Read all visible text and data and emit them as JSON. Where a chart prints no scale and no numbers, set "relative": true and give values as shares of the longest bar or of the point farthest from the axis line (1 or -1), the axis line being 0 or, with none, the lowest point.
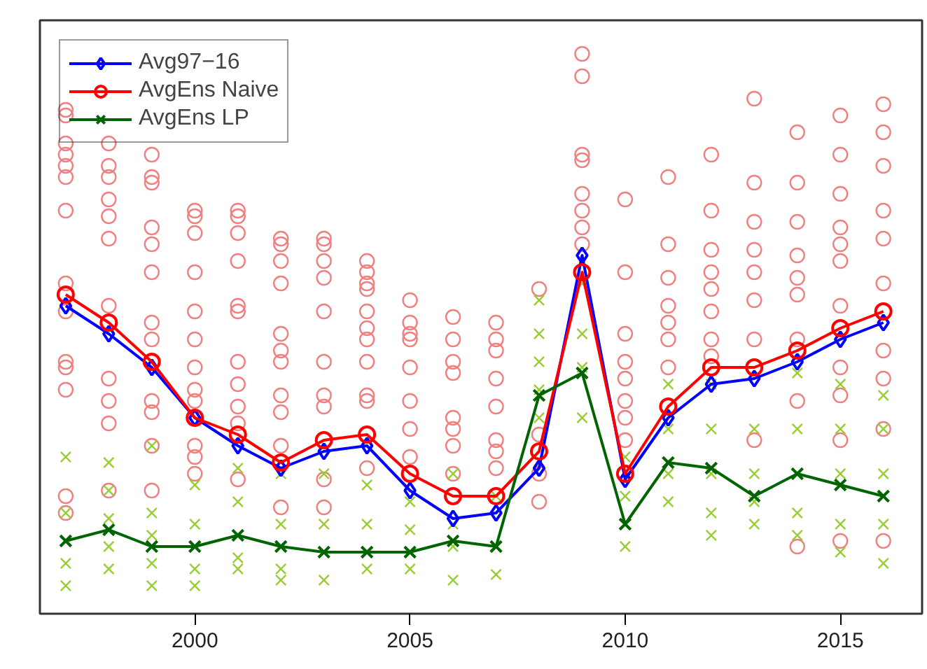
{
  "chart_data": {
    "type": "line",
    "relative": true,
    "x": [
      1997,
      1998,
      1999,
      2000,
      2001,
      2002,
      2003,
      2004,
      2005,
      2006,
      2007,
      2008,
      2009,
      2010,
      2011,
      2012,
      2013,
      2014,
      2015,
      2016
    ],
    "xlim": [
      1996.4,
      2016.9
    ],
    "xticks": [
      2000,
      2005,
      2010,
      2015
    ],
    "grid": false,
    "legend": "top left",
    "series": [
      {
        "type": "scatter",
        "marker": "circle",
        "color": "#f08080",
        "x": [
          1997,
          1997,
          1997,
          1997,
          1997,
          1997,
          1997,
          1997,
          1997,
          1997,
          1997,
          1997,
          1997,
          1997,
          1998,
          1998,
          1998,
          1998,
          1998,
          1998,
          1998,
          1998,
          1998,
          1998,
          1998,
          1999,
          1999,
          1999,
          1999,
          1999,
          1999,
          1999,
          1999,
          1999,
          1999,
          1999,
          1999,
          1999,
          2000,
          2000,
          2000,
          2000,
          2000,
          2000,
          2000,
          2000,
          2000,
          2000,
          2000,
          2000,
          2001,
          2001,
          2001,
          2001,
          2001,
          2001,
          2001,
          2001,
          2001,
          2001,
          2001,
          2002,
          2002,
          2002,
          2002,
          2002,
          2002,
          2002,
          2002,
          2002,
          2002,
          2002,
          2003,
          2003,
          2003,
          2003,
          2003,
          2003,
          2003,
          2003,
          2003,
          2003,
          2004,
          2004,
          2004,
          2004,
          2004,
          2004,
          2004,
          2004,
          2004,
          2004,
          2004,
          2005,
          2005,
          2005,
          2005,
          2005,
          2005,
          2005,
          2005,
          2006,
          2006,
          2006,
          2006,
          2006,
          2006,
          2006,
          2006,
          2007,
          2007,
          2007,
          2007,
          2007,
          2007,
          2007,
          2007,
          2008,
          2008,
          2008,
          2008,
          2009,
          2009,
          2009,
          2009,
          2009,
          2009,
          2009,
          2009,
          2010,
          2010,
          2010,
          2010,
          2010,
          2010,
          2010,
          2010,
          2011,
          2011,
          2011,
          2011,
          2011,
          2011,
          2011,
          2012,
          2012,
          2012,
          2012,
          2012,
          2012,
          2012,
          2012,
          2013,
          2013,
          2013,
          2013,
          2013,
          2013,
          2013,
          2013,
          2014,
          2014,
          2014,
          2014,
          2014,
          2014,
          2014,
          2014,
          2014,
          2015,
          2015,
          2015,
          2015,
          2015,
          2015,
          2015,
          2015,
          2015,
          2015,
          2015,
          2016,
          2016,
          2016,
          2016,
          2016,
          2016,
          2016,
          2016,
          2016,
          2016
        ],
        "values": [
          0.9,
          0.89,
          0.84,
          0.82,
          0.8,
          0.78,
          0.72,
          0.59,
          0.54,
          0.45,
          0.44,
          0.4,
          0.21,
          0.18,
          0.84,
          0.8,
          0.78,
          0.74,
          0.71,
          0.67,
          0.55,
          0.42,
          0.38,
          0.34,
          0.22,
          0.82,
          0.78,
          0.77,
          0.69,
          0.66,
          0.61,
          0.52,
          0.49,
          0.45,
          0.38,
          0.36,
          0.3,
          0.22,
          0.72,
          0.71,
          0.68,
          0.61,
          0.54,
          0.49,
          0.44,
          0.4,
          0.38,
          0.3,
          0.28,
          0.25,
          0.72,
          0.71,
          0.68,
          0.63,
          0.55,
          0.54,
          0.45,
          0.41,
          0.37,
          0.34,
          0.24,
          0.67,
          0.66,
          0.63,
          0.59,
          0.5,
          0.47,
          0.45,
          0.39,
          0.36,
          0.3,
          0.19,
          0.67,
          0.66,
          0.63,
          0.6,
          0.54,
          0.45,
          0.39,
          0.37,
          0.24,
          0.19,
          0.63,
          0.61,
          0.59,
          0.58,
          0.54,
          0.51,
          0.49,
          0.45,
          0.39,
          0.38,
          0.26,
          0.56,
          0.52,
          0.5,
          0.49,
          0.44,
          0.38,
          0.33,
          0.28,
          0.53,
          0.49,
          0.45,
          0.43,
          0.35,
          0.33,
          0.3,
          0.25,
          0.52,
          0.49,
          0.47,
          0.42,
          0.37,
          0.31,
          0.29,
          0.26,
          0.58,
          0.32,
          0.25,
          0.2,
          1.0,
          0.96,
          0.82,
          0.81,
          0.75,
          0.72,
          0.69,
          0.66,
          0.74,
          0.61,
          0.5,
          0.45,
          0.42,
          0.38,
          0.35,
          0.31,
          0.78,
          0.66,
          0.6,
          0.55,
          0.52,
          0.49,
          0.44,
          0.82,
          0.72,
          0.65,
          0.61,
          0.58,
          0.54,
          0.49,
          0.46,
          0.92,
          0.77,
          0.7,
          0.65,
          0.61,
          0.56,
          0.49,
          0.31,
          0.86,
          0.77,
          0.7,
          0.64,
          0.6,
          0.57,
          0.49,
          0.38,
          0.12,
          0.89,
          0.82,
          0.75,
          0.69,
          0.66,
          0.63,
          0.55,
          0.44,
          0.39,
          0.31,
          0.13,
          0.91,
          0.86,
          0.8,
          0.72,
          0.67,
          0.59,
          0.47,
          0.42,
          0.33,
          0.13
        ]
      },
      {
        "type": "scatter",
        "marker": "cross",
        "color": "#9acd32",
        "x": [
          1997,
          1997,
          1997,
          1997,
          1998,
          1998,
          1998,
          1998,
          1998,
          1999,
          1999,
          1999,
          1999,
          1999,
          2000,
          2000,
          2000,
          2000,
          2001,
          2001,
          2001,
          2001,
          2002,
          2002,
          2002,
          2002,
          2003,
          2003,
          2003,
          2004,
          2004,
          2004,
          2005,
          2005,
          2005,
          2006,
          2006,
          2006,
          2006,
          2007,
          2007,
          2008,
          2008,
          2008,
          2008,
          2008,
          2009,
          2009,
          2009,
          2009,
          2010,
          2010,
          2010,
          2011,
          2011,
          2011,
          2011,
          2012,
          2012,
          2012,
          2012,
          2012,
          2013,
          2013,
          2013,
          2013,
          2014,
          2014,
          2014,
          2014,
          2015,
          2015,
          2015,
          2015,
          2015,
          2016,
          2016,
          2016,
          2016,
          2016
        ],
        "values": [
          0.28,
          0.18,
          0.09,
          0.05,
          0.27,
          0.22,
          0.17,
          0.12,
          0.08,
          0.3,
          0.18,
          0.14,
          0.09,
          0.05,
          0.23,
          0.16,
          0.08,
          0.05,
          0.26,
          0.2,
          0.1,
          0.08,
          0.25,
          0.16,
          0.08,
          0.06,
          0.25,
          0.16,
          0.06,
          0.23,
          0.16,
          0.08,
          0.2,
          0.15,
          0.08,
          0.25,
          0.16,
          0.12,
          0.06,
          0.21,
          0.07,
          0.56,
          0.5,
          0.45,
          0.4,
          0.35,
          0.59,
          0.5,
          0.44,
          0.35,
          0.28,
          0.21,
          0.12,
          0.41,
          0.33,
          0.25,
          0.2,
          0.41,
          0.33,
          0.25,
          0.18,
          0.14,
          0.33,
          0.25,
          0.2,
          0.16,
          0.43,
          0.33,
          0.18,
          0.14,
          0.41,
          0.33,
          0.25,
          0.16,
          0.11,
          0.39,
          0.33,
          0.25,
          0.16,
          0.09
        ]
      },
      {
        "name": "Avg97−16",
        "marker": "diamond",
        "color": "#0000ff",
        "values": [
          0.55,
          0.5,
          0.44,
          0.35,
          0.3,
          0.26,
          0.29,
          0.3,
          0.22,
          0.17,
          0.18,
          0.26,
          0.64,
          0.24,
          0.35,
          0.41,
          0.42,
          0.45,
          0.49,
          0.52
        ]
      },
      {
        "name": "AvgEns Naive",
        "marker": "circle",
        "color": "#ff0000",
        "values": [
          0.57,
          0.52,
          0.45,
          0.35,
          0.32,
          0.27,
          0.31,
          0.32,
          0.25,
          0.21,
          0.21,
          0.29,
          0.61,
          0.25,
          0.37,
          0.44,
          0.44,
          0.47,
          0.51,
          0.54
        ]
      },
      {
        "name": "AvgEns LP",
        "marker": "cross",
        "color": "#006400",
        "values": [
          0.13,
          0.15,
          0.12,
          0.12,
          0.14,
          0.12,
          0.11,
          0.11,
          0.11,
          0.13,
          0.12,
          0.39,
          0.43,
          0.16,
          0.27,
          0.26,
          0.21,
          0.25,
          0.23,
          0.21
        ]
      }
    ]
  }
}
